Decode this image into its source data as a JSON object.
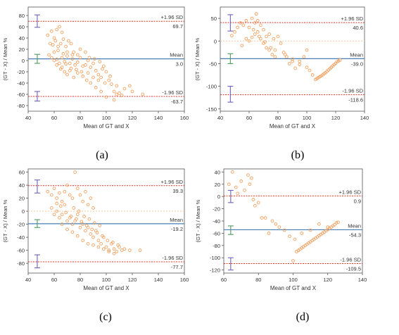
{
  "chart_data": [
    {
      "type": "scatter",
      "caption": "(a)",
      "xlabel": "Mean of GT and X",
      "ylabel": "(GT - X) / Mean %",
      "xlim": [
        40,
        160
      ],
      "ylim": [
        -90,
        95
      ],
      "xticks": [
        40,
        60,
        80,
        100,
        120,
        140,
        160
      ],
      "yticks": [
        -80,
        -60,
        -40,
        -20,
        0,
        20,
        40,
        60,
        80
      ],
      "lines": {
        "upper": {
          "label": "+1.96 SD",
          "value": 69.7,
          "value_label": "69.7"
        },
        "mean": {
          "label": "Mean",
          "value": 3.0,
          "value_label": "3.0"
        },
        "lower": {
          "label": "-1.96 SD",
          "value": -63.7,
          "value_label": "-63.7"
        }
      },
      "ci_x": 47,
      "ci": {
        "upper": [
          59,
          81
        ],
        "mean": [
          -5,
          11
        ],
        "lower": [
          -72,
          -55
        ]
      },
      "points": [
        [
          55,
          45
        ],
        [
          58,
          52
        ],
        [
          60,
          40
        ],
        [
          62,
          55
        ],
        [
          64,
          60
        ],
        [
          66,
          50
        ],
        [
          57,
          30
        ],
        [
          59,
          28
        ],
        [
          61,
          35
        ],
        [
          63,
          25
        ],
        [
          65,
          30
        ],
        [
          67,
          38
        ],
        [
          69,
          25
        ],
        [
          71,
          35
        ],
        [
          73,
          30
        ],
        [
          75,
          15
        ],
        [
          78,
          10
        ],
        [
          80,
          20
        ],
        [
          56,
          10
        ],
        [
          58,
          5
        ],
        [
          60,
          0
        ],
        [
          62,
          2
        ],
        [
          64,
          -5
        ],
        [
          66,
          5
        ],
        [
          68,
          -2
        ],
        [
          70,
          8
        ],
        [
          72,
          -5
        ],
        [
          74,
          3
        ],
        [
          76,
          -8
        ],
        [
          78,
          -3
        ],
        [
          80,
          5
        ],
        [
          82,
          -10
        ],
        [
          84,
          -8
        ],
        [
          86,
          0
        ],
        [
          88,
          -12
        ],
        [
          90,
          -5
        ],
        [
          92,
          -18
        ],
        [
          94,
          -25
        ],
        [
          96,
          -30
        ],
        [
          98,
          -10
        ],
        [
          100,
          -20
        ],
        [
          102,
          -35
        ],
        [
          104,
          -42
        ],
        [
          106,
          -55
        ],
        [
          108,
          -60
        ],
        [
          110,
          -58
        ],
        [
          65,
          -15
        ],
        [
          68,
          -20
        ],
        [
          70,
          -25
        ],
        [
          72,
          -18
        ],
        [
          75,
          -30
        ],
        [
          78,
          -22
        ],
        [
          82,
          -28
        ],
        [
          85,
          -35
        ],
        [
          88,
          -40
        ],
        [
          92,
          -48
        ],
        [
          96,
          -55
        ],
        [
          100,
          -65
        ],
        [
          106,
          -70
        ],
        [
          112,
          -62
        ],
        [
          120,
          -55
        ],
        [
          128,
          -60
        ],
        [
          60,
          15
        ],
        [
          63,
          18
        ],
        [
          67,
          12
        ],
        [
          70,
          15
        ],
        [
          74,
          10
        ],
        [
          84,
          15
        ],
        [
          87,
          5
        ],
        [
          91,
          3
        ],
        [
          95,
          -2
        ],
        [
          97,
          -15
        ],
        [
          103,
          -28
        ],
        [
          108,
          -45
        ],
        [
          114,
          -50
        ],
        [
          118,
          -45
        ],
        [
          62,
          -8
        ],
        [
          66,
          -12
        ],
        [
          69,
          -6
        ],
        [
          73,
          -14
        ],
        [
          77,
          -16
        ],
        [
          81,
          -20
        ],
        [
          86,
          -22
        ],
        [
          90,
          -30
        ],
        [
          94,
          -35
        ],
        [
          99,
          -40
        ]
      ]
    },
    {
      "type": "scatter",
      "caption": "(b)",
      "xlabel": "Mean of GT and X",
      "ylabel": "(GT - X) / Mean %",
      "xlim": [
        40,
        140
      ],
      "ylim": [
        -155,
        75
      ],
      "xticks": [
        40,
        60,
        80,
        100,
        120,
        140
      ],
      "yticks": [
        -150,
        -100,
        -50,
        0,
        50
      ],
      "lines": {
        "upper": {
          "label": "+1.96 SD",
          "value": 40.6,
          "value_label": "40.6"
        },
        "mean": {
          "label": "Mean",
          "value": -39.0,
          "value_label": "-39.0"
        },
        "lower": {
          "label": "-1.96 SD",
          "value": -118.6,
          "value_label": "-118.6"
        }
      },
      "zero_line": true,
      "ci_x": 47,
      "ci": {
        "upper": [
          22,
          58
        ],
        "mean": [
          -50,
          -28
        ],
        "lower": [
          -135,
          -100
        ]
      },
      "points": [
        [
          48,
          12
        ],
        [
          50,
          20
        ],
        [
          52,
          30
        ],
        [
          54,
          40
        ],
        [
          56,
          35
        ],
        [
          58,
          45
        ],
        [
          60,
          30
        ],
        [
          62,
          50
        ],
        [
          64,
          40
        ],
        [
          65,
          60
        ],
        [
          66,
          45
        ],
        [
          68,
          35
        ],
        [
          70,
          25
        ],
        [
          72,
          10
        ],
        [
          55,
          -10
        ],
        [
          58,
          5
        ],
        [
          60,
          0
        ],
        [
          62,
          8
        ],
        [
          64,
          15
        ],
        [
          66,
          20
        ],
        [
          68,
          5
        ],
        [
          70,
          -5
        ],
        [
          72,
          -15
        ],
        [
          74,
          -20
        ],
        [
          76,
          -30
        ],
        [
          78,
          -35
        ],
        [
          80,
          10
        ],
        [
          82,
          -5
        ],
        [
          84,
          -25
        ],
        [
          86,
          -35
        ],
        [
          88,
          -50
        ],
        [
          90,
          -40
        ],
        [
          92,
          -60
        ],
        [
          95,
          -45
        ],
        [
          98,
          -35
        ],
        [
          100,
          -20
        ],
        [
          102,
          -65
        ],
        [
          104,
          -75
        ],
        [
          106,
          -85
        ],
        [
          107,
          -83
        ],
        [
          108,
          -81
        ],
        [
          109,
          -79
        ],
        [
          110,
          -77
        ],
        [
          111,
          -75
        ],
        [
          112,
          -72
        ],
        [
          113,
          -70
        ],
        [
          114,
          -67
        ],
        [
          115,
          -64
        ],
        [
          116,
          -61
        ],
        [
          117,
          -58
        ],
        [
          118,
          -55
        ],
        [
          119,
          -52
        ],
        [
          120,
          -49
        ],
        [
          121,
          -46
        ],
        [
          122,
          -44
        ],
        [
          123,
          -42
        ],
        [
          75,
          -15
        ],
        [
          78,
          -20
        ],
        [
          85,
          -30
        ],
        [
          90,
          -45
        ],
        [
          95,
          -52
        ],
        [
          100,
          -58
        ],
        [
          63,
          25
        ],
        [
          67,
          10
        ],
        [
          71,
          -2
        ],
        [
          74,
          15
        ],
        [
          77,
          5
        ]
      ]
    },
    {
      "type": "scatter",
      "caption": "(c)",
      "xlabel": "Mean of GT and X",
      "ylabel": "(GT - X) / Mean %",
      "xlim": [
        40,
        160
      ],
      "ylim": [
        -95,
        65
      ],
      "xticks": [
        40,
        60,
        80,
        100,
        120,
        140,
        160
      ],
      "yticks": [
        -80,
        -60,
        -40,
        -20,
        0,
        20,
        40,
        60
      ],
      "lines": {
        "upper": {
          "label": "+1.96 SD",
          "value": 39.3,
          "value_label": "39.3"
        },
        "mean": {
          "label": "Mean",
          "value": -19.2,
          "value_label": "-19.2"
        },
        "lower": {
          "label": "-1.96 SD",
          "value": -77.7,
          "value_label": "-77.7"
        }
      },
      "zero_line": true,
      "ci_x": 47,
      "ci": {
        "upper": [
          28,
          48
        ],
        "mean": [
          -25,
          -13
        ],
        "lower": [
          -87,
          -67
        ]
      },
      "points": [
        [
          55,
          30
        ],
        [
          58,
          25
        ],
        [
          60,
          35
        ],
        [
          62,
          20
        ],
        [
          64,
          28
        ],
        [
          66,
          15
        ],
        [
          68,
          30
        ],
        [
          70,
          40
        ],
        [
          72,
          25
        ],
        [
          74,
          20
        ],
        [
          76,
          60
        ],
        [
          78,
          35
        ],
        [
          80,
          25
        ],
        [
          82,
          15
        ],
        [
          84,
          30
        ],
        [
          86,
          10
        ],
        [
          88,
          20
        ],
        [
          90,
          5
        ],
        [
          58,
          5
        ],
        [
          60,
          -5
        ],
        [
          62,
          0
        ],
        [
          64,
          -10
        ],
        [
          66,
          -5
        ],
        [
          68,
          10
        ],
        [
          70,
          -15
        ],
        [
          72,
          -10
        ],
        [
          74,
          -20
        ],
        [
          76,
          -15
        ],
        [
          78,
          -5
        ],
        [
          80,
          -25
        ],
        [
          82,
          -20
        ],
        [
          84,
          -30
        ],
        [
          86,
          -25
        ],
        [
          88,
          -35
        ],
        [
          90,
          -40
        ],
        [
          92,
          -30
        ],
        [
          94,
          -45
        ],
        [
          96,
          -50
        ],
        [
          98,
          -40
        ],
        [
          100,
          -55
        ],
        [
          102,
          -60
        ],
        [
          104,
          -50
        ],
        [
          106,
          -58
        ],
        [
          108,
          -62
        ],
        [
          110,
          -55
        ],
        [
          112,
          -60
        ],
        [
          114,
          -58
        ],
        [
          118,
          -60
        ],
        [
          126,
          -60
        ],
        [
          66,
          -20
        ],
        [
          70,
          -28
        ],
        [
          74,
          -32
        ],
        [
          78,
          -38
        ],
        [
          82,
          -45
        ],
        [
          86,
          -50
        ],
        [
          90,
          -52
        ],
        [
          94,
          -55
        ],
        [
          98,
          -58
        ],
        [
          102,
          -62
        ],
        [
          106,
          -65
        ],
        [
          75,
          5
        ],
        [
          79,
          0
        ],
        [
          83,
          -8
        ],
        [
          87,
          -12
        ],
        [
          91,
          -18
        ],
        [
          95,
          -22
        ],
        [
          62,
          12
        ],
        [
          65,
          8
        ],
        [
          69,
          -2
        ],
        [
          73,
          -8
        ],
        [
          77,
          -12
        ],
        [
          81,
          -16
        ],
        [
          85,
          -22
        ],
        [
          89,
          -28
        ],
        [
          93,
          -33
        ],
        [
          97,
          -38
        ],
        [
          101,
          -45
        ],
        [
          105,
          -48
        ],
        [
          109,
          -52
        ]
      ]
    },
    {
      "type": "scatter",
      "caption": "(d)",
      "xlabel": "Mean of GT and X",
      "ylabel": "(GT - X) / Mean %",
      "xlim": [
        60,
        140
      ],
      "ylim": [
        -125,
        45
      ],
      "xticks": [
        60,
        80,
        100,
        120,
        140
      ],
      "yticks": [
        -120,
        -100,
        -80,
        -60,
        -40,
        -20,
        0,
        20,
        40
      ],
      "lines": {
        "upper": {
          "label": "+1.96 SD",
          "value": 0.9,
          "value_label": "0.9"
        },
        "mean": {
          "label": "Mean",
          "value": -54.3,
          "value_label": "-54.3"
        },
        "lower": {
          "label": "-1.96 SD",
          "value": -109.5,
          "value_label": "-109.5"
        }
      },
      "ci_x": 64,
      "ci": {
        "upper": [
          -10,
          10
        ],
        "mean": [
          -62,
          -48
        ],
        "lower": [
          -120,
          -100
        ]
      },
      "points": [
        [
          63,
          20
        ],
        [
          65,
          40
        ],
        [
          67,
          15
        ],
        [
          68,
          5
        ],
        [
          70,
          25
        ],
        [
          72,
          10
        ],
        [
          74,
          35
        ],
        [
          75,
          20
        ],
        [
          76,
          30
        ],
        [
          77,
          -5
        ],
        [
          78,
          -15
        ],
        [
          80,
          -10
        ],
        [
          82,
          -35
        ],
        [
          84,
          -35
        ],
        [
          86,
          -60
        ],
        [
          88,
          -40
        ],
        [
          90,
          -45
        ],
        [
          92,
          -50
        ],
        [
          95,
          -55
        ],
        [
          98,
          -65
        ],
        [
          100,
          -105
        ],
        [
          102,
          -90
        ],
        [
          103,
          -88
        ],
        [
          104,
          -86
        ],
        [
          105,
          -84
        ],
        [
          106,
          -82
        ],
        [
          107,
          -80
        ],
        [
          108,
          -78
        ],
        [
          109,
          -76
        ],
        [
          110,
          -74
        ],
        [
          111,
          -72
        ],
        [
          112,
          -70
        ],
        [
          113,
          -68
        ],
        [
          114,
          -66
        ],
        [
          115,
          -64
        ],
        [
          116,
          -62
        ],
        [
          117,
          -60
        ],
        [
          118,
          -58
        ],
        [
          119,
          -56
        ],
        [
          120,
          -54
        ],
        [
          121,
          -52
        ],
        [
          122,
          -50
        ],
        [
          123,
          -48
        ],
        [
          124,
          -46
        ],
        [
          125,
          -43
        ],
        [
          126,
          -42
        ],
        [
          101,
          -70
        ],
        [
          105,
          -60
        ],
        [
          110,
          -55
        ],
        [
          115,
          -45
        ],
        [
          120,
          -50
        ]
      ]
    }
  ]
}
